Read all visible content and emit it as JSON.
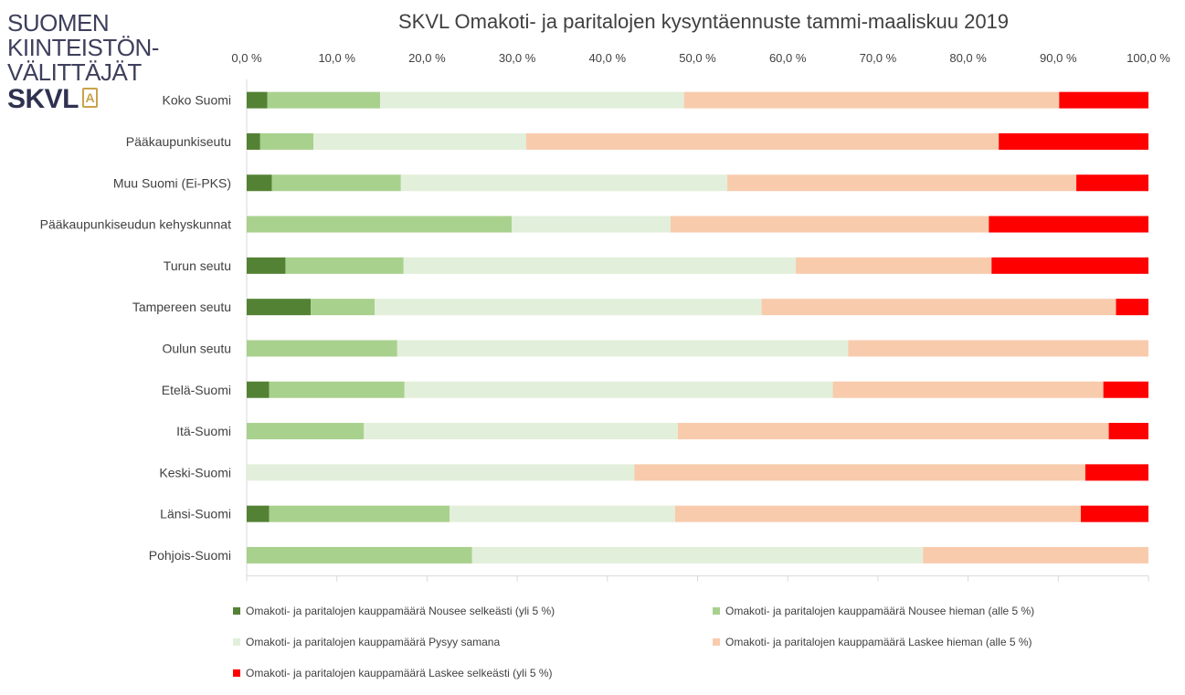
{
  "logo": {
    "line1": "SUOMEN",
    "line2": "KIINTEISTÖN-",
    "line3": "VÄLITTÄJÄT",
    "brand": "SKVL",
    "badge_glyph": "A"
  },
  "chart_data": {
    "type": "bar",
    "orientation": "horizontal",
    "stacked": "100%",
    "title": "SKVL Omakoti- ja paritalojen kysyntäennuste tammi-maaliskuu 2019",
    "xlim": [
      0,
      100
    ],
    "x_ticks": [
      "0,0 %",
      "10,0 %",
      "20,0 %",
      "30,0 %",
      "40,0 %",
      "50,0 %",
      "60,0 %",
      "70,0 %",
      "80,0 %",
      "90,0 %",
      "100,0 %"
    ],
    "x_axis_position": "top",
    "grid": false,
    "legend_position": "bottom",
    "categories": [
      "Koko Suomi",
      "Pääkaupunkiseutu",
      "Muu Suomi (Ei-PKS)",
      "Pääkaupunkiseudun kehyskunnat",
      "Turun seutu",
      "Tampereen seutu",
      "Oulun seutu",
      "Etelä-Suomi",
      "Itä-Suomi",
      "Keski-Suomi",
      "Länsi-Suomi",
      "Pohjois-Suomi"
    ],
    "series": [
      {
        "name": "Omakoti- ja paritalojen kauppamäärä Nousee selkeästi (yli 5 %)",
        "color": "#548235",
        "values": [
          2.3,
          1.5,
          2.8,
          0,
          4.3,
          7.1,
          0,
          2.5,
          0,
          0,
          2.5,
          0
        ]
      },
      {
        "name": "Omakoti- ja paritalojen kauppamäärä Nousee hieman (alle 5 %)",
        "color": "#a9d18e",
        "values": [
          12.5,
          5.9,
          14.3,
          29.4,
          13.1,
          7.1,
          16.7,
          15.0,
          13.0,
          0,
          20.0,
          25.0
        ]
      },
      {
        "name": "Omakoti- ja paritalojen kauppamäärä Pysyy samana",
        "color": "#e2efda",
        "values": [
          33.7,
          23.6,
          36.2,
          17.6,
          43.5,
          42.9,
          50.0,
          47.5,
          34.8,
          43.0,
          25.0,
          50.0
        ]
      },
      {
        "name": "Omakoti- ja paritalojen kauppamäärä Laskee hieman (alle 5 %)",
        "color": "#f8cbad",
        "values": [
          41.6,
          52.4,
          38.7,
          35.3,
          21.7,
          39.3,
          33.3,
          30.0,
          47.8,
          50.0,
          45.0,
          25.0
        ]
      },
      {
        "name": "Omakoti- ja paritalojen kauppamäärä Laskee selkeästi (yli 5 %)",
        "color": "#ff0000",
        "values": [
          9.9,
          16.6,
          8.0,
          17.7,
          17.4,
          3.6,
          0,
          5.0,
          4.4,
          7.0,
          7.5,
          0
        ]
      }
    ]
  }
}
